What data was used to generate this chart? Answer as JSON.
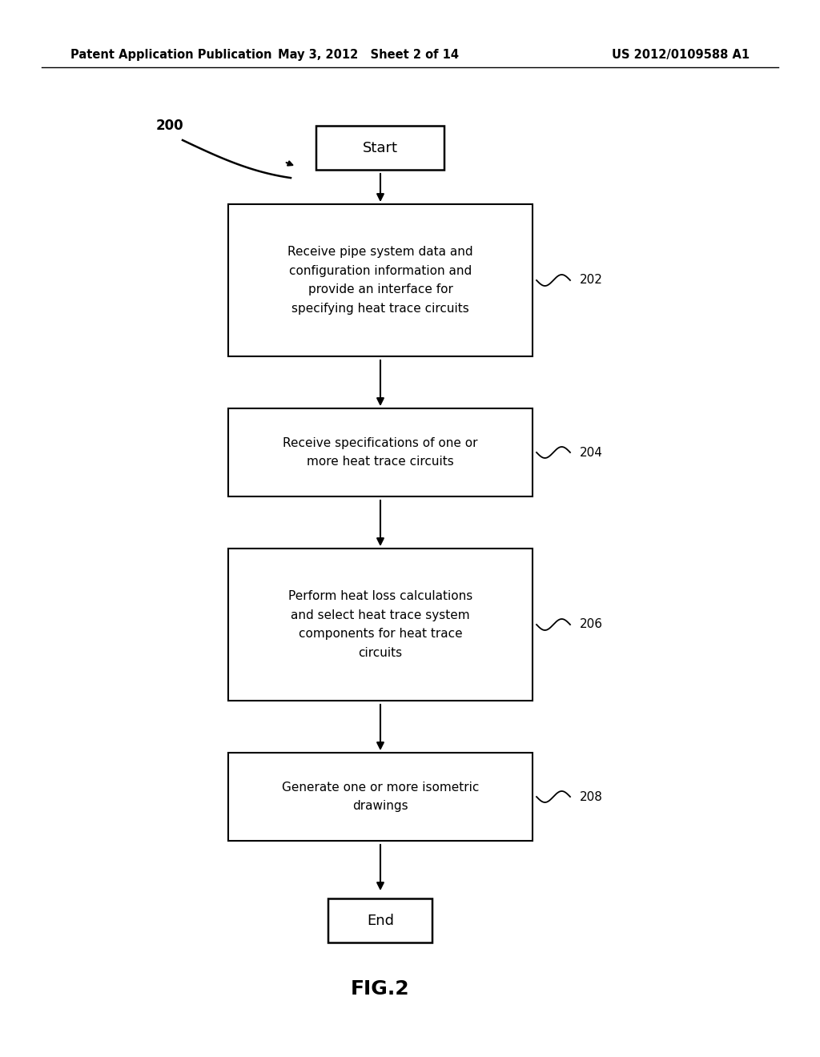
{
  "bg_color": "#ffffff",
  "header_left": "Patent Application Publication",
  "header_mid": "May 3, 2012   Sheet 2 of 14",
  "header_right": "US 2012/0109588 A1",
  "fig_label": "FIG.2",
  "label_200": "200",
  "start_label": "Start",
  "end_label": "End",
  "boxes": [
    {
      "text": "Receive pipe system data and\nconfiguration information and\nprovide an interface for\nspecifying heat trace circuits",
      "label": "202"
    },
    {
      "text": "Receive specifications of one or\nmore heat trace circuits",
      "label": "204"
    },
    {
      "text": "Perform heat loss calculations\nand select heat trace system\ncomponents for heat trace\ncircuits",
      "label": "206"
    },
    {
      "text": "Generate one or more isometric\ndrawings",
      "label": "208"
    }
  ],
  "text_color": "#000000",
  "font_size_header": 10.5,
  "font_size_box": 11,
  "font_size_label": 11,
  "font_size_fig": 18,
  "font_size_start_end": 13
}
